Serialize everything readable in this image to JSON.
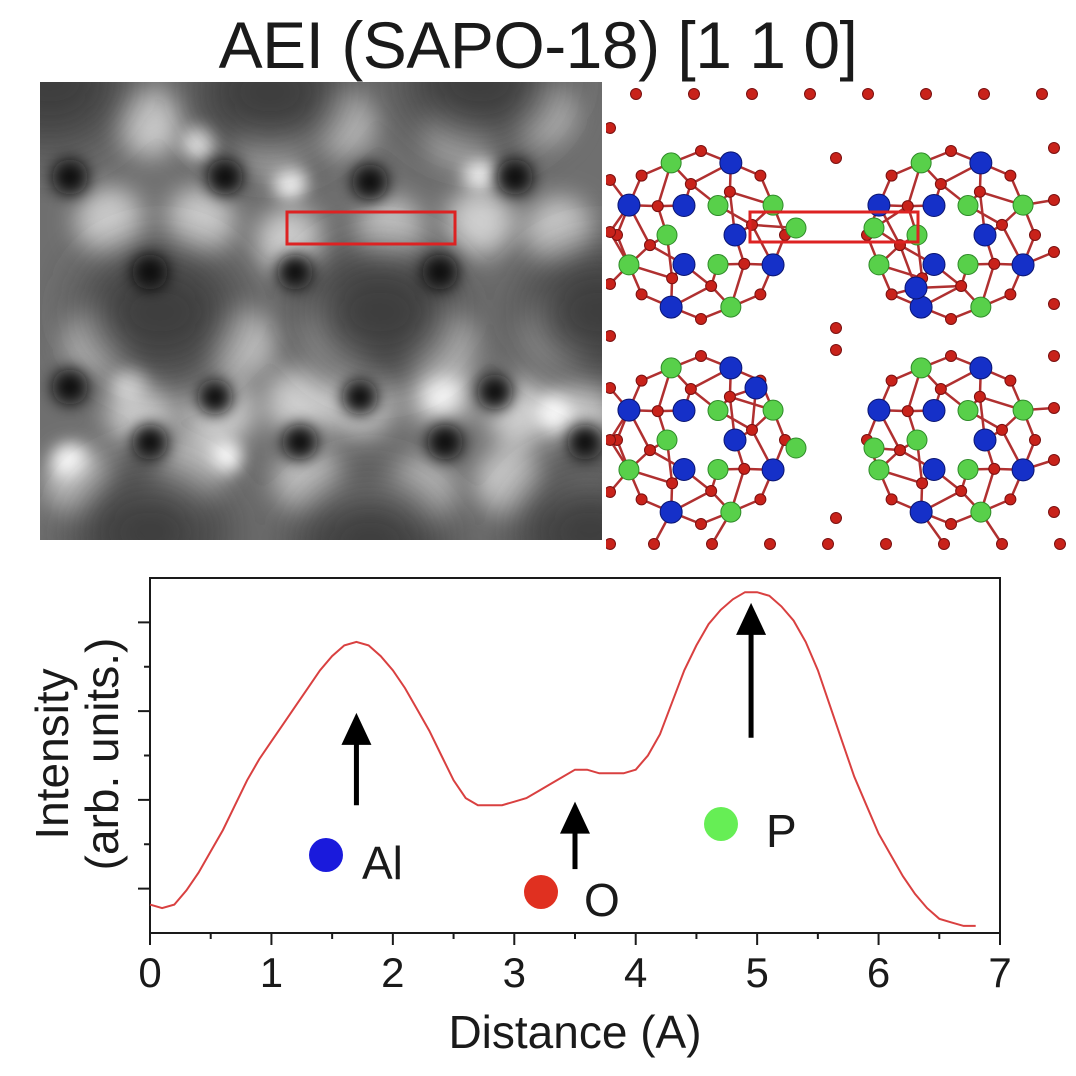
{
  "title": "AEI (SAPO-18) [1 1 0]",
  "colors": {
    "profile": "#d94040",
    "roi_box": "#dd2222",
    "al": "#1a1adc",
    "o": "#e03020",
    "p": "#66ee55",
    "oxygen_atom": "#c8221a",
    "phosphorus_atom": "#58d04a",
    "aluminum_atom": "#1530c8"
  },
  "legend": {
    "al_label": "Al",
    "o_label": "O",
    "p_label": "P"
  },
  "chart_data": {
    "type": "line",
    "title": "",
    "xlabel": "Distance (A)",
    "ylabel_line1": "Intensity",
    "ylabel_line2": "(arb. units.)",
    "xlim": [
      0,
      7
    ],
    "ylim": [
      0,
      1
    ],
    "xticks": [
      0,
      1,
      2,
      3,
      4,
      5,
      6,
      7
    ],
    "grid": false,
    "series": [
      {
        "x": [
          0.0,
          0.1,
          0.2,
          0.3,
          0.4,
          0.5,
          0.6,
          0.7,
          0.8,
          0.9,
          1.0,
          1.1,
          1.2,
          1.3,
          1.4,
          1.5,
          1.6,
          1.7,
          1.8,
          1.9,
          2.0,
          2.1,
          2.2,
          2.3,
          2.4,
          2.5,
          2.6,
          2.7,
          2.8,
          2.9,
          3.0,
          3.1,
          3.2,
          3.3,
          3.4,
          3.5,
          3.6,
          3.7,
          3.8,
          3.9,
          4.0,
          4.1,
          4.2,
          4.3,
          4.4,
          4.5,
          4.6,
          4.7,
          4.8,
          4.9,
          5.0,
          5.1,
          5.2,
          5.3,
          5.4,
          5.5,
          5.6,
          5.7,
          5.8,
          5.9,
          6.0,
          6.1,
          6.2,
          6.3,
          6.4,
          6.5,
          6.6,
          6.7,
          6.8
        ],
        "y": [
          0.08,
          0.07,
          0.08,
          0.12,
          0.17,
          0.23,
          0.29,
          0.36,
          0.43,
          0.49,
          0.54,
          0.59,
          0.64,
          0.69,
          0.74,
          0.78,
          0.81,
          0.82,
          0.81,
          0.78,
          0.74,
          0.69,
          0.63,
          0.57,
          0.5,
          0.43,
          0.38,
          0.36,
          0.36,
          0.36,
          0.37,
          0.38,
          0.4,
          0.42,
          0.44,
          0.46,
          0.46,
          0.45,
          0.45,
          0.45,
          0.46,
          0.5,
          0.56,
          0.65,
          0.74,
          0.81,
          0.87,
          0.91,
          0.94,
          0.96,
          0.96,
          0.95,
          0.92,
          0.88,
          0.82,
          0.74,
          0.64,
          0.54,
          0.44,
          0.36,
          0.28,
          0.22,
          0.16,
          0.11,
          0.07,
          0.04,
          0.03,
          0.02,
          0.02
        ]
      }
    ],
    "annotations": [
      {
        "label": "Al",
        "arrow_x": 1.7,
        "arrow_from": 0.36,
        "arrow_to": 0.62
      },
      {
        "label": "O",
        "arrow_x": 3.5,
        "arrow_from": 0.18,
        "arrow_to": 0.37
      },
      {
        "label": "P",
        "arrow_x": 4.95,
        "arrow_from": 0.55,
        "arrow_to": 0.93
      }
    ]
  }
}
